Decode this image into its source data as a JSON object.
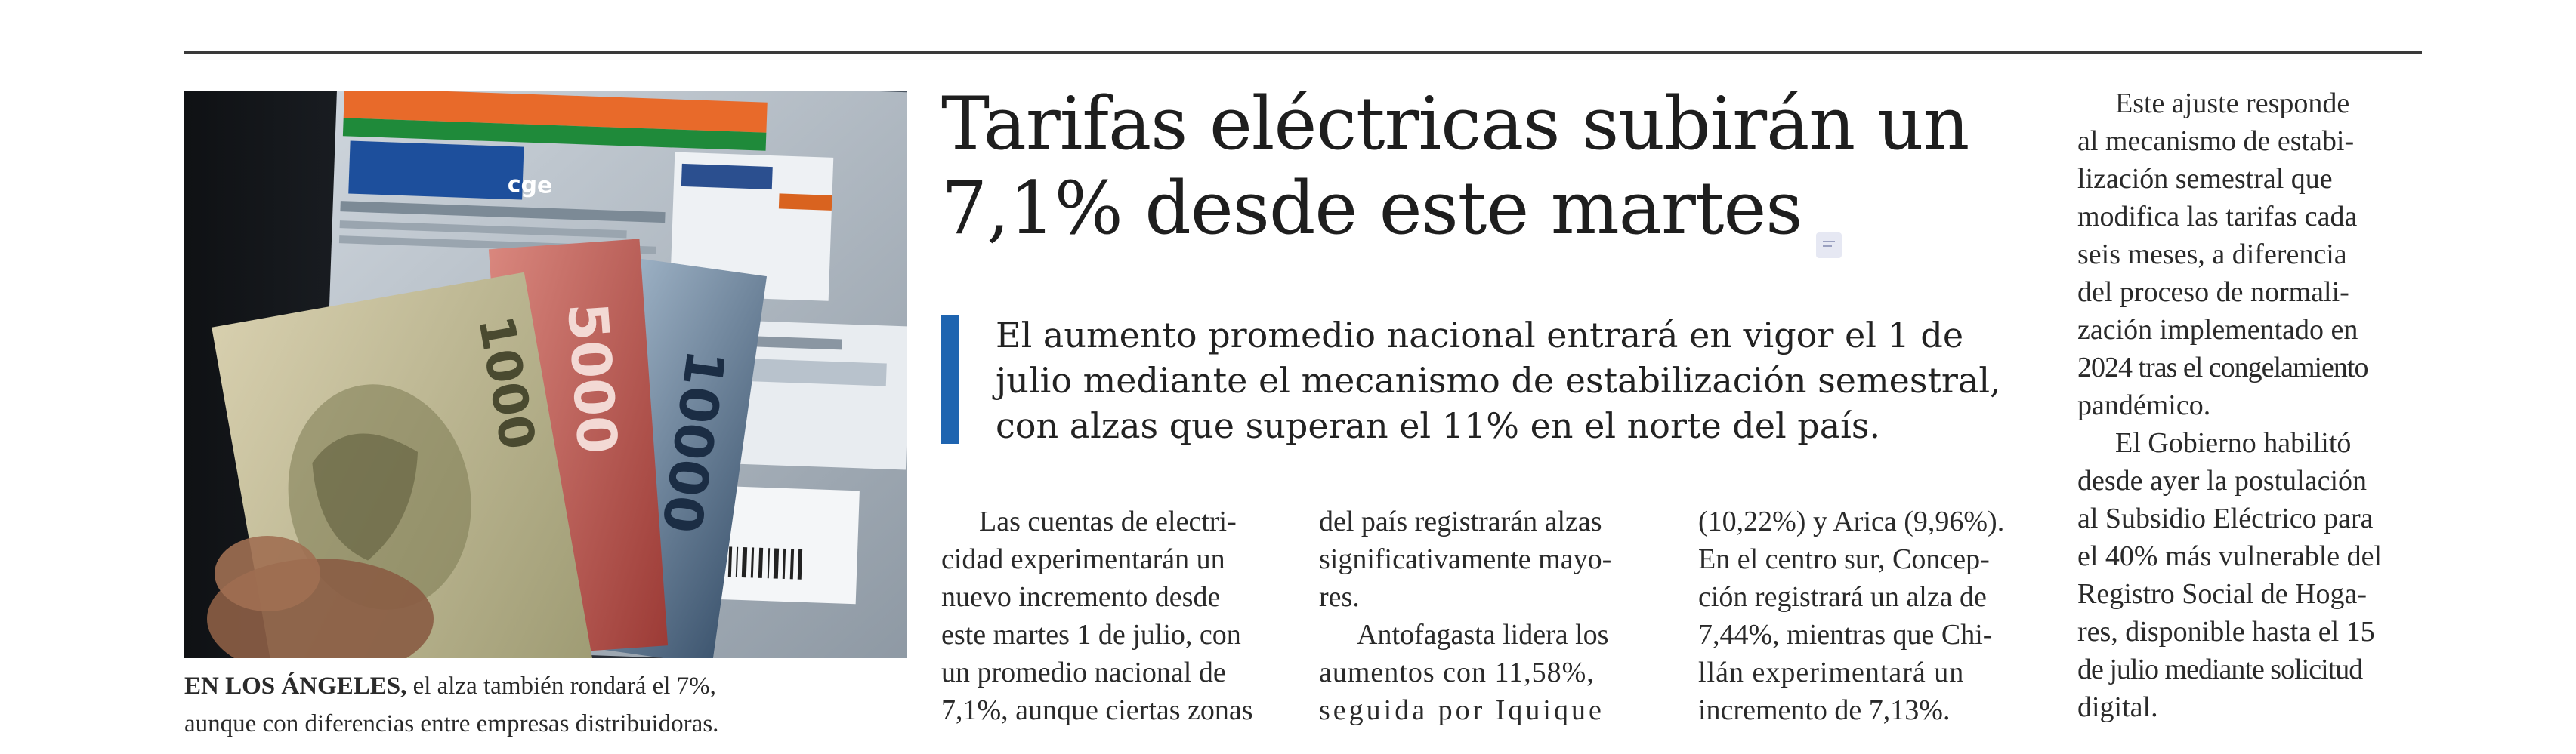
{
  "article": {
    "headline_line1": "Tarifas eléctricas subirán un",
    "headline_line2": "7,1% desde este martes",
    "deck_line1": "El aumento promedio nacional entrará en vigor el 1 de",
    "deck_line2": "julio mediante el mecanismo de estabilización semestral,",
    "deck_line3": "con alzas que superan el 11% en el norte del país.",
    "photo": {
      "banknotes": [
        "1000",
        "5000",
        "10000"
      ],
      "bill_logo": "cge"
    },
    "caption": {
      "lead": "EN LOS ÁNGELES,",
      "text_line1": " el alza también rondará el 7%,",
      "text_line2": "aunque con diferencias entre empresas distribuidoras."
    },
    "columns": {
      "col1": [
        "Las cuentas de electri-",
        "cidad experimentarán un",
        "nuevo incremento desde",
        "este martes 1 de julio, con",
        "un promedio nacional de",
        "7,1%, aunque ciertas zonas"
      ],
      "col2_p1": [
        "del país registrarán alzas",
        "significativamente mayo-",
        "res."
      ],
      "col2_p2": [
        "Antofagasta lidera los",
        "aumentos con 11,58%,",
        "seguida por Iquique"
      ],
      "col3": [
        "(10,22%) y Arica (9,96%).",
        "En el centro sur, Concep-",
        "ción registrará un alza de",
        "7,44%, mientras que Chi-",
        "llán experimentará un",
        "incremento de 7,13%."
      ],
      "col4_p1": [
        "Este ajuste responde",
        "al mecanismo de estabi-",
        "lización semestral que",
        "modifica las tarifas cada",
        "seis meses, a diferencia",
        "del proceso de normali-",
        "zación implementado en",
        "2024 tras el congelamiento",
        "pandémico."
      ],
      "col4_p2": [
        "El Gobierno habilitó",
        "desde ayer la postulación",
        "al Subsidio Eléctrico para",
        "el 40% más vulnerable del",
        "Registro Social de Hoga-",
        "res, disponible hasta el 15",
        "de julio mediante solicitud",
        "digital."
      ]
    }
  },
  "colors": {
    "accent_bar": "#1e64b0",
    "rule": "#3a3a3a",
    "text": "#2a2a2a"
  }
}
